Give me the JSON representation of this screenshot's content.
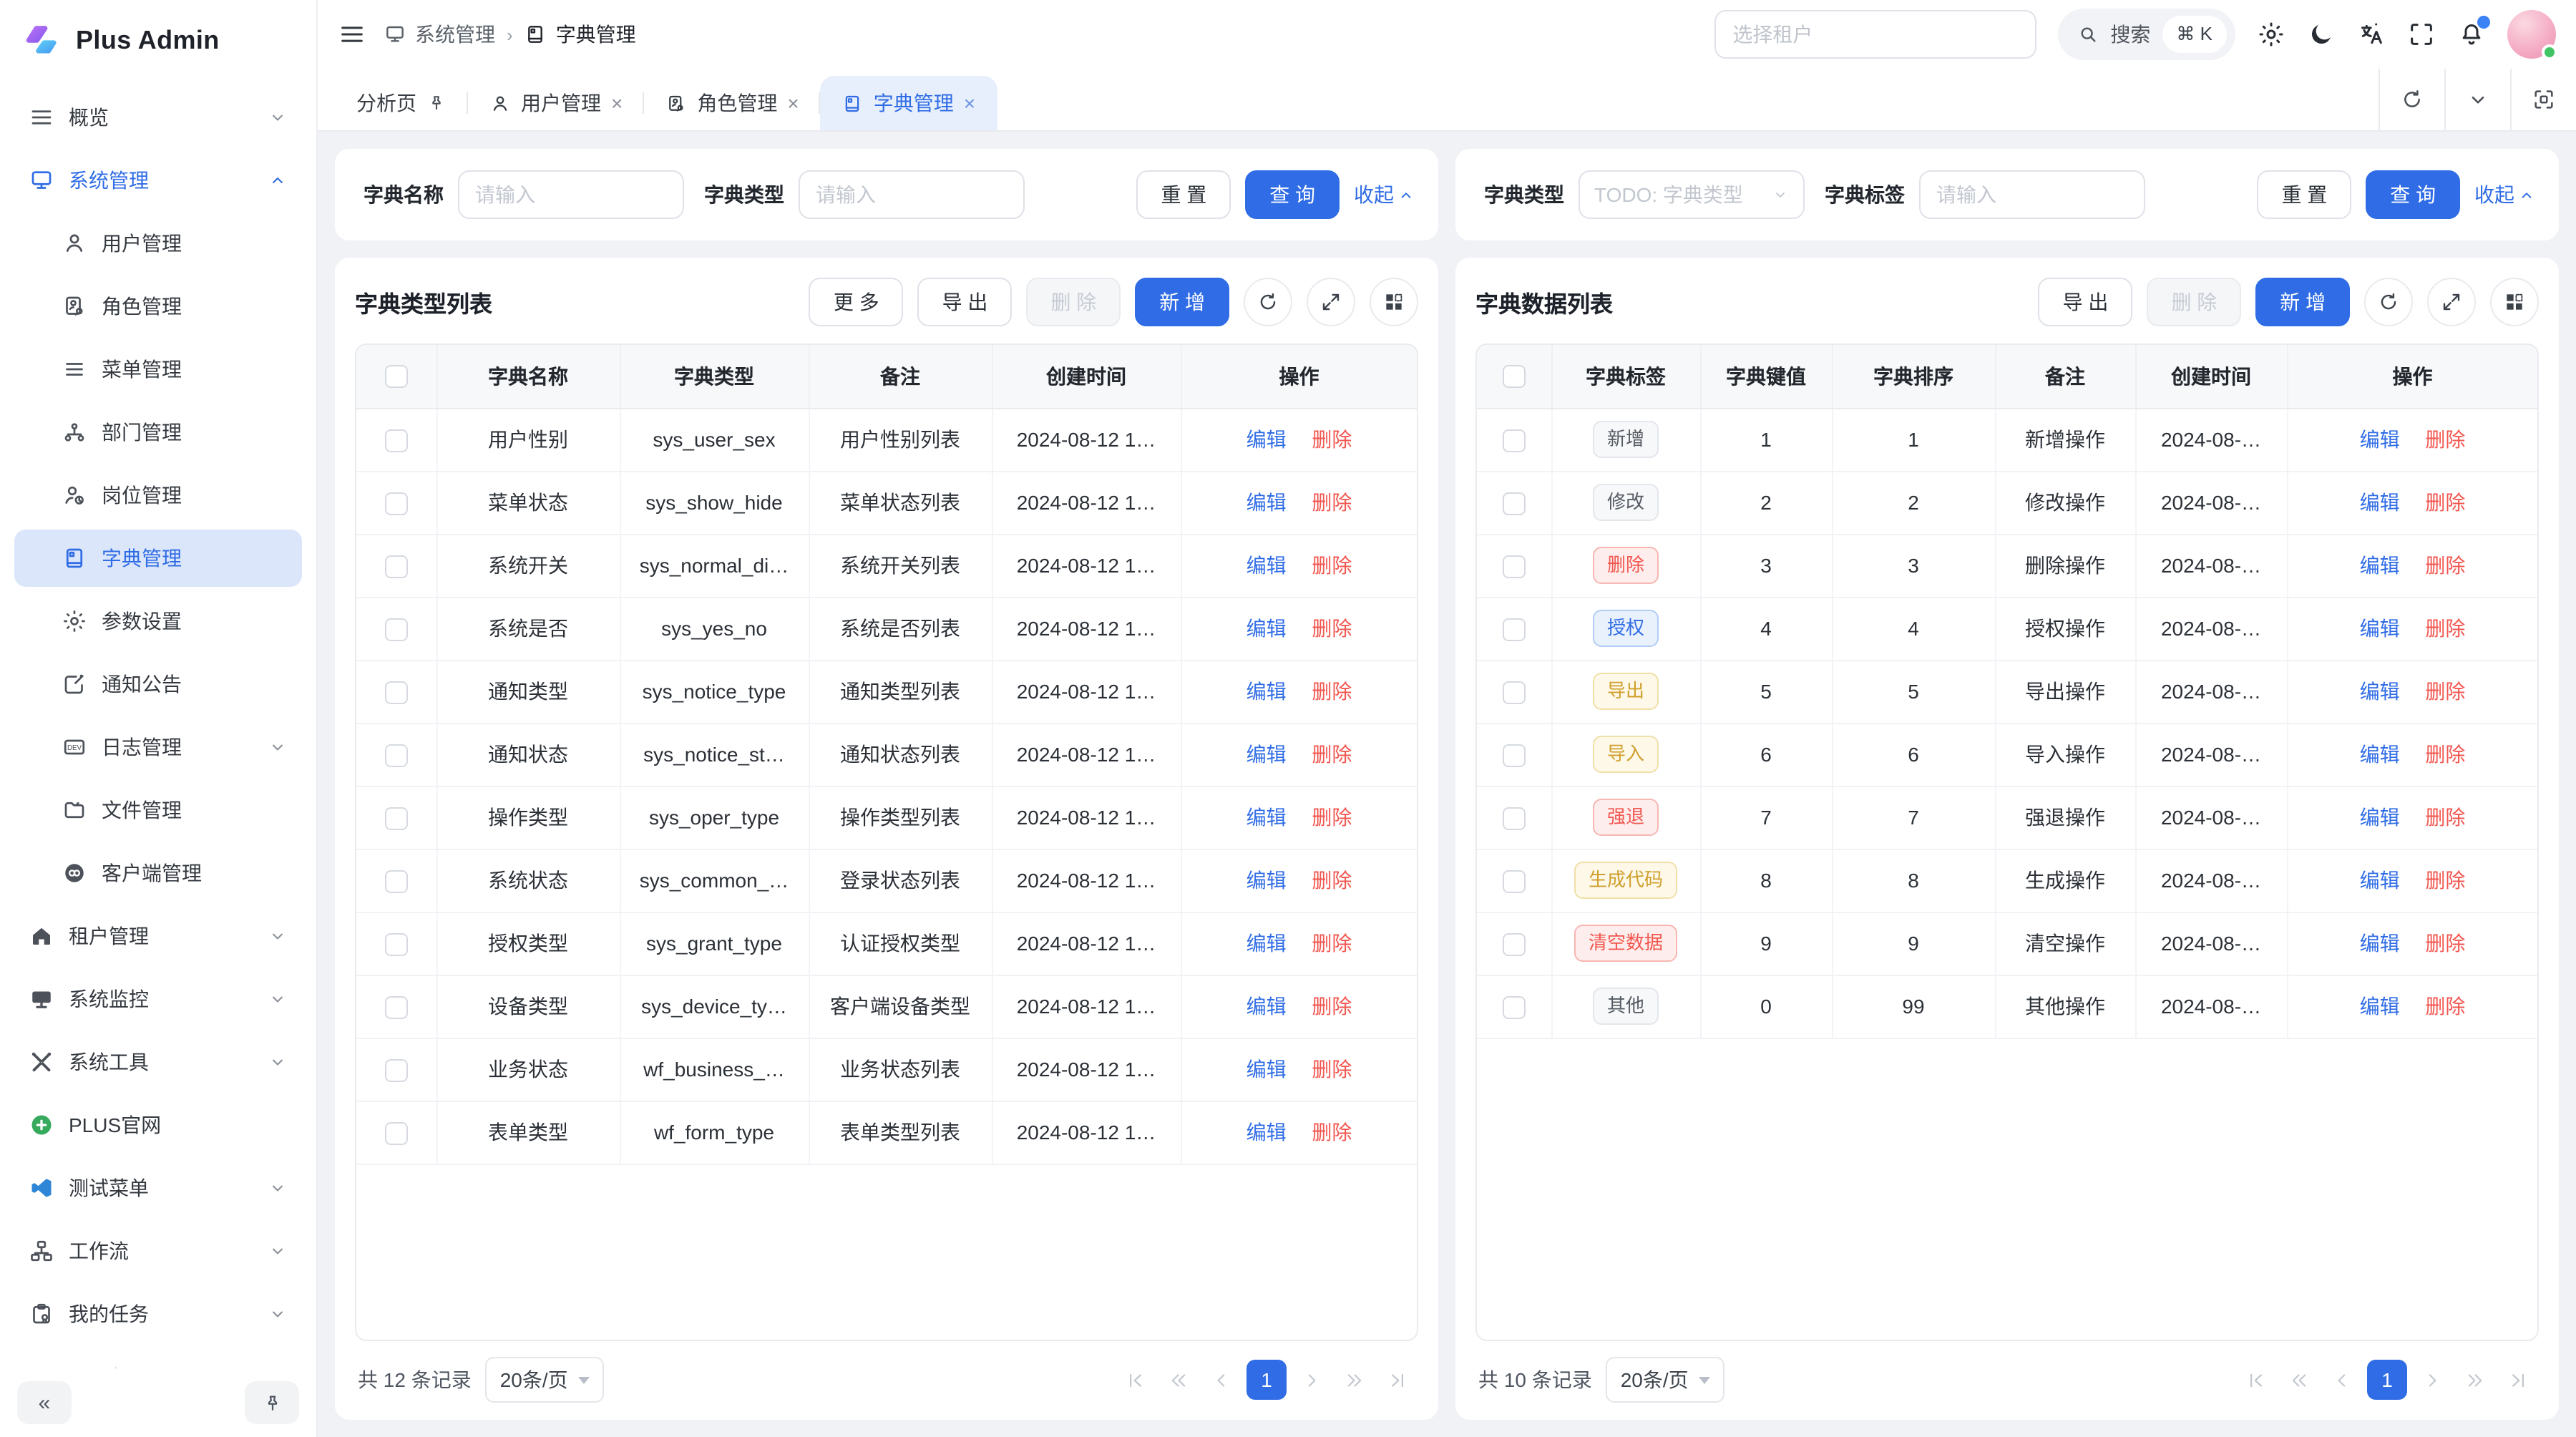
{
  "app": {
    "title": "Plus Admin"
  },
  "colors": {
    "primary": "#2f6ce5",
    "danger": "#f2564f",
    "warning": "#cf9f2c",
    "active_menu_bg": "#dce6fa",
    "page_bg": "#f1f2f6"
  },
  "shared": {
    "edit": "编辑",
    "delete": "删除",
    "close": "×"
  },
  "header": {
    "breadcrumb": [
      {
        "label": "系统管理",
        "icon": "system"
      },
      {
        "label": "字典管理",
        "icon": "dict"
      }
    ],
    "tenant_placeholder": "选择租户",
    "search": {
      "label": "搜索",
      "kbd": "⌘ K"
    }
  },
  "tabbar": {
    "tabs": [
      {
        "label": "分析页",
        "pin": true
      },
      {
        "label": "用户管理",
        "icon": "user",
        "closable": true
      },
      {
        "label": "角色管理",
        "icon": "role",
        "closable": true
      },
      {
        "label": "字典管理",
        "icon": "dict",
        "closable": true,
        "cls": "active"
      }
    ]
  },
  "sidebar": {
    "items": [
      {
        "label": "概览",
        "icon": "overview",
        "chevron": "chevron-down"
      },
      {
        "label": "系统管理",
        "icon": "system",
        "chevron": "chevron-up",
        "cls": "parent-active"
      },
      {
        "label": "用户管理",
        "icon": "user",
        "cls": "sub"
      },
      {
        "label": "角色管理",
        "icon": "role",
        "cls": "sub"
      },
      {
        "label": "菜单管理",
        "icon": "menu",
        "cls": "sub"
      },
      {
        "label": "部门管理",
        "icon": "dept",
        "cls": "sub"
      },
      {
        "label": "岗位管理",
        "icon": "post",
        "cls": "sub"
      },
      {
        "label": "字典管理",
        "icon": "dict",
        "cls": "sub active"
      },
      {
        "label": "参数设置",
        "icon": "config",
        "cls": "sub"
      },
      {
        "label": "通知公告",
        "icon": "notice",
        "cls": "sub"
      },
      {
        "label": "日志管理",
        "icon": "log",
        "cls": "sub",
        "chevron": "chevron-down"
      },
      {
        "label": "文件管理",
        "icon": "file",
        "cls": "sub"
      },
      {
        "label": "客户端管理",
        "icon": "client",
        "cls": "sub"
      },
      {
        "label": "租户管理",
        "icon": "tenant",
        "chevron": "chevron-down"
      },
      {
        "label": "系统监控",
        "icon": "monitor2",
        "chevron": "chevron-down"
      },
      {
        "label": "系统工具",
        "icon": "tool",
        "chevron": "chevron-down"
      },
      {
        "label": "PLUS官网",
        "icon": "plus-site"
      },
      {
        "label": "测试菜单",
        "icon": "test",
        "chevron": "chevron-down"
      },
      {
        "label": "工作流",
        "icon": "workflow",
        "chevron": "chevron-down"
      },
      {
        "label": "我的任务",
        "icon": "task",
        "chevron": "chevron-down"
      },
      {
        "label": "gitee记录",
        "icon": "gitee"
      }
    ],
    "footer": {
      "collapse_glyph": "«"
    }
  },
  "panels": {
    "left": {
      "filter": {
        "fields": [
          {
            "label": "字典名称",
            "placeholder": "请输入"
          },
          {
            "label": "字典类型",
            "placeholder": "请输入"
          }
        ],
        "reset": "重 置",
        "submit": "查 询",
        "collapse": "收起"
      },
      "title": "字典类型列表",
      "toolbar": {
        "more": "更 多",
        "export": "导 出",
        "delete": "删 除",
        "add": "新 增"
      },
      "columns": [
        "字典名称",
        "字典类型",
        "备注",
        "创建时间",
        "操作"
      ],
      "created": "2024-08-12 1…",
      "rows": [
        {
          "name": "用户性别",
          "type": "sys_user_sex",
          "remark": "用户性别列表"
        },
        {
          "name": "菜单状态",
          "type": "sys_show_hide",
          "remark": "菜单状态列表"
        },
        {
          "name": "系统开关",
          "type": "sys_normal_di…",
          "remark": "系统开关列表"
        },
        {
          "name": "系统是否",
          "type": "sys_yes_no",
          "remark": "系统是否列表"
        },
        {
          "name": "通知类型",
          "type": "sys_notice_type",
          "remark": "通知类型列表"
        },
        {
          "name": "通知状态",
          "type": "sys_notice_st…",
          "remark": "通知状态列表"
        },
        {
          "name": "操作类型",
          "type": "sys_oper_type",
          "remark": "操作类型列表"
        },
        {
          "name": "系统状态",
          "type": "sys_common_…",
          "remark": "登录状态列表"
        },
        {
          "name": "授权类型",
          "type": "sys_grant_type",
          "remark": "认证授权类型"
        },
        {
          "name": "设备类型",
          "type": "sys_device_ty…",
          "remark": "客户端设备类型"
        },
        {
          "name": "业务状态",
          "type": "wf_business_…",
          "remark": "业务状态列表"
        },
        {
          "name": "表单类型",
          "type": "wf_form_type",
          "remark": "表单类型列表"
        }
      ],
      "pagination": {
        "total": "共 12 条记录",
        "page_size": "20条/页",
        "page": "1"
      }
    },
    "right": {
      "filter": {
        "select_label": "字典类型",
        "select_placeholder": "TODO: 字典类型",
        "input_label": "字典标签",
        "input_placeholder": "请输入",
        "reset": "重 置",
        "submit": "查 询",
        "collapse": "收起"
      },
      "title": "字典数据列表",
      "toolbar": {
        "export": "导 出",
        "delete": "删 除",
        "add": "新 增"
      },
      "columns": [
        "字典标签",
        "字典键值",
        "字典排序",
        "备注",
        "创建时间",
        "操作"
      ],
      "created": "2024-08-…",
      "rows": [
        {
          "tag": "新增",
          "tag_type": "default",
          "key": "1",
          "sort": "1",
          "remark": "新增操作"
        },
        {
          "tag": "修改",
          "tag_type": "default",
          "key": "2",
          "sort": "2",
          "remark": "修改操作"
        },
        {
          "tag": "删除",
          "tag_type": "danger",
          "key": "3",
          "sort": "3",
          "remark": "删除操作"
        },
        {
          "tag": "授权",
          "tag_type": "primary",
          "key": "4",
          "sort": "4",
          "remark": "授权操作"
        },
        {
          "tag": "导出",
          "tag_type": "warning",
          "key": "5",
          "sort": "5",
          "remark": "导出操作"
        },
        {
          "tag": "导入",
          "tag_type": "warning",
          "key": "6",
          "sort": "6",
          "remark": "导入操作"
        },
        {
          "tag": "强退",
          "tag_type": "danger",
          "key": "7",
          "sort": "7",
          "remark": "强退操作"
        },
        {
          "tag": "生成代码",
          "tag_type": "warning",
          "key": "8",
          "sort": "8",
          "remark": "生成操作"
        },
        {
          "tag": "清空数据",
          "tag_type": "danger",
          "key": "9",
          "sort": "9",
          "remark": "清空操作"
        },
        {
          "tag": "其他",
          "tag_type": "default",
          "key": "0",
          "sort": "99",
          "remark": "其他操作"
        }
      ],
      "pagination": {
        "total": "共 10 条记录",
        "page_size": "20条/页",
        "page": "1"
      }
    }
  }
}
